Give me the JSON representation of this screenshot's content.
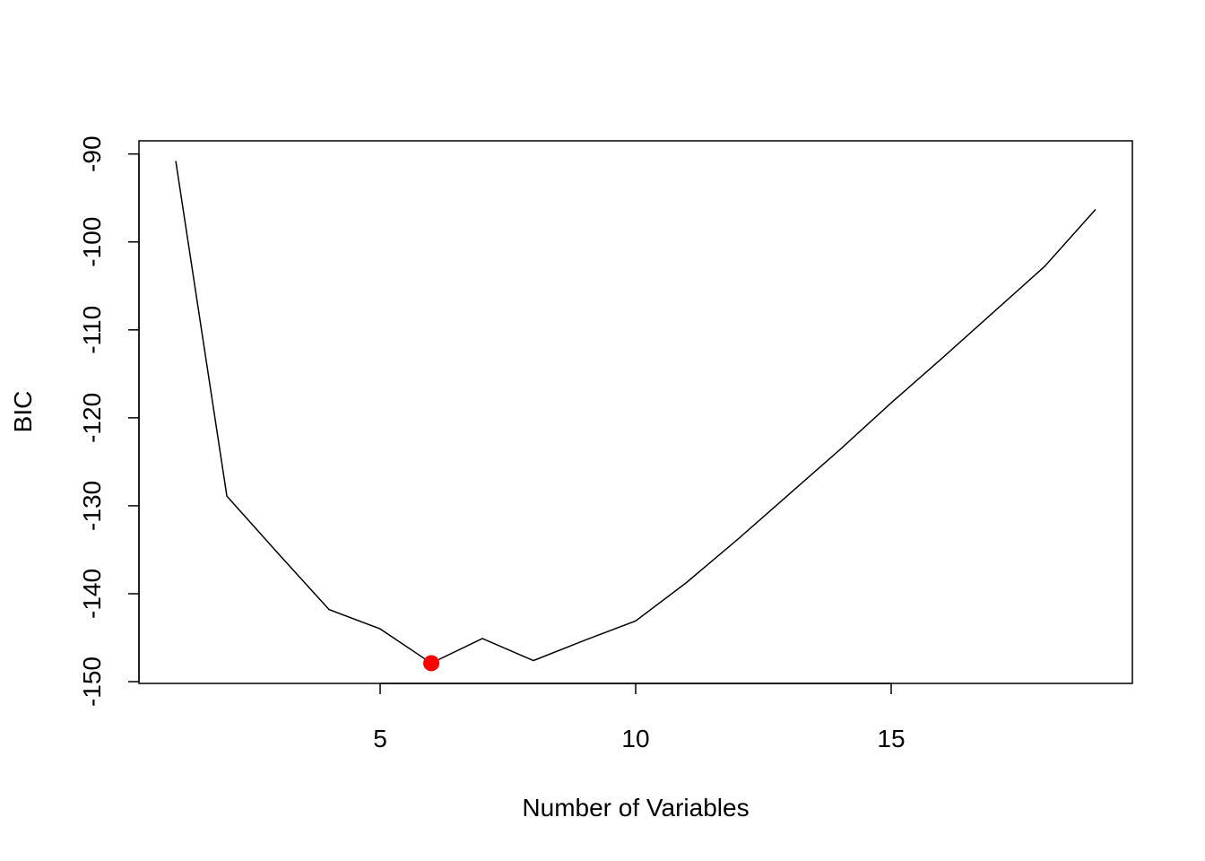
{
  "chart_data": {
    "type": "line",
    "x_label": "Number of Variables",
    "y_label": "BIC",
    "x": [
      1,
      2,
      3,
      4,
      5,
      6,
      7,
      8,
      9,
      10,
      11,
      12,
      13,
      14,
      15,
      16,
      17,
      18,
      19
    ],
    "series": [
      {
        "color": "#000000",
        "style": "line",
        "values": [
          -90.8,
          -128.9,
          -135.4,
          -141.8,
          -144.0,
          -147.9,
          -145.1,
          -147.6,
          -145.3,
          -143.1,
          -138.7,
          -133.8,
          -128.7,
          -123.6,
          -118.3,
          -113.2,
          -108.0,
          -102.8,
          -96.3
        ]
      },
      {
        "color": "#ff0000",
        "style": "point",
        "x": [
          6
        ],
        "values": [
          -147.9
        ]
      }
    ],
    "xlim": [
      0.28,
      19.72
    ],
    "ylim": [
      -150.2,
      -88.5
    ],
    "xticks": [
      5,
      10,
      15
    ],
    "yticks": [
      -150,
      -140,
      -130,
      -120,
      -110,
      -100,
      -90
    ]
  }
}
